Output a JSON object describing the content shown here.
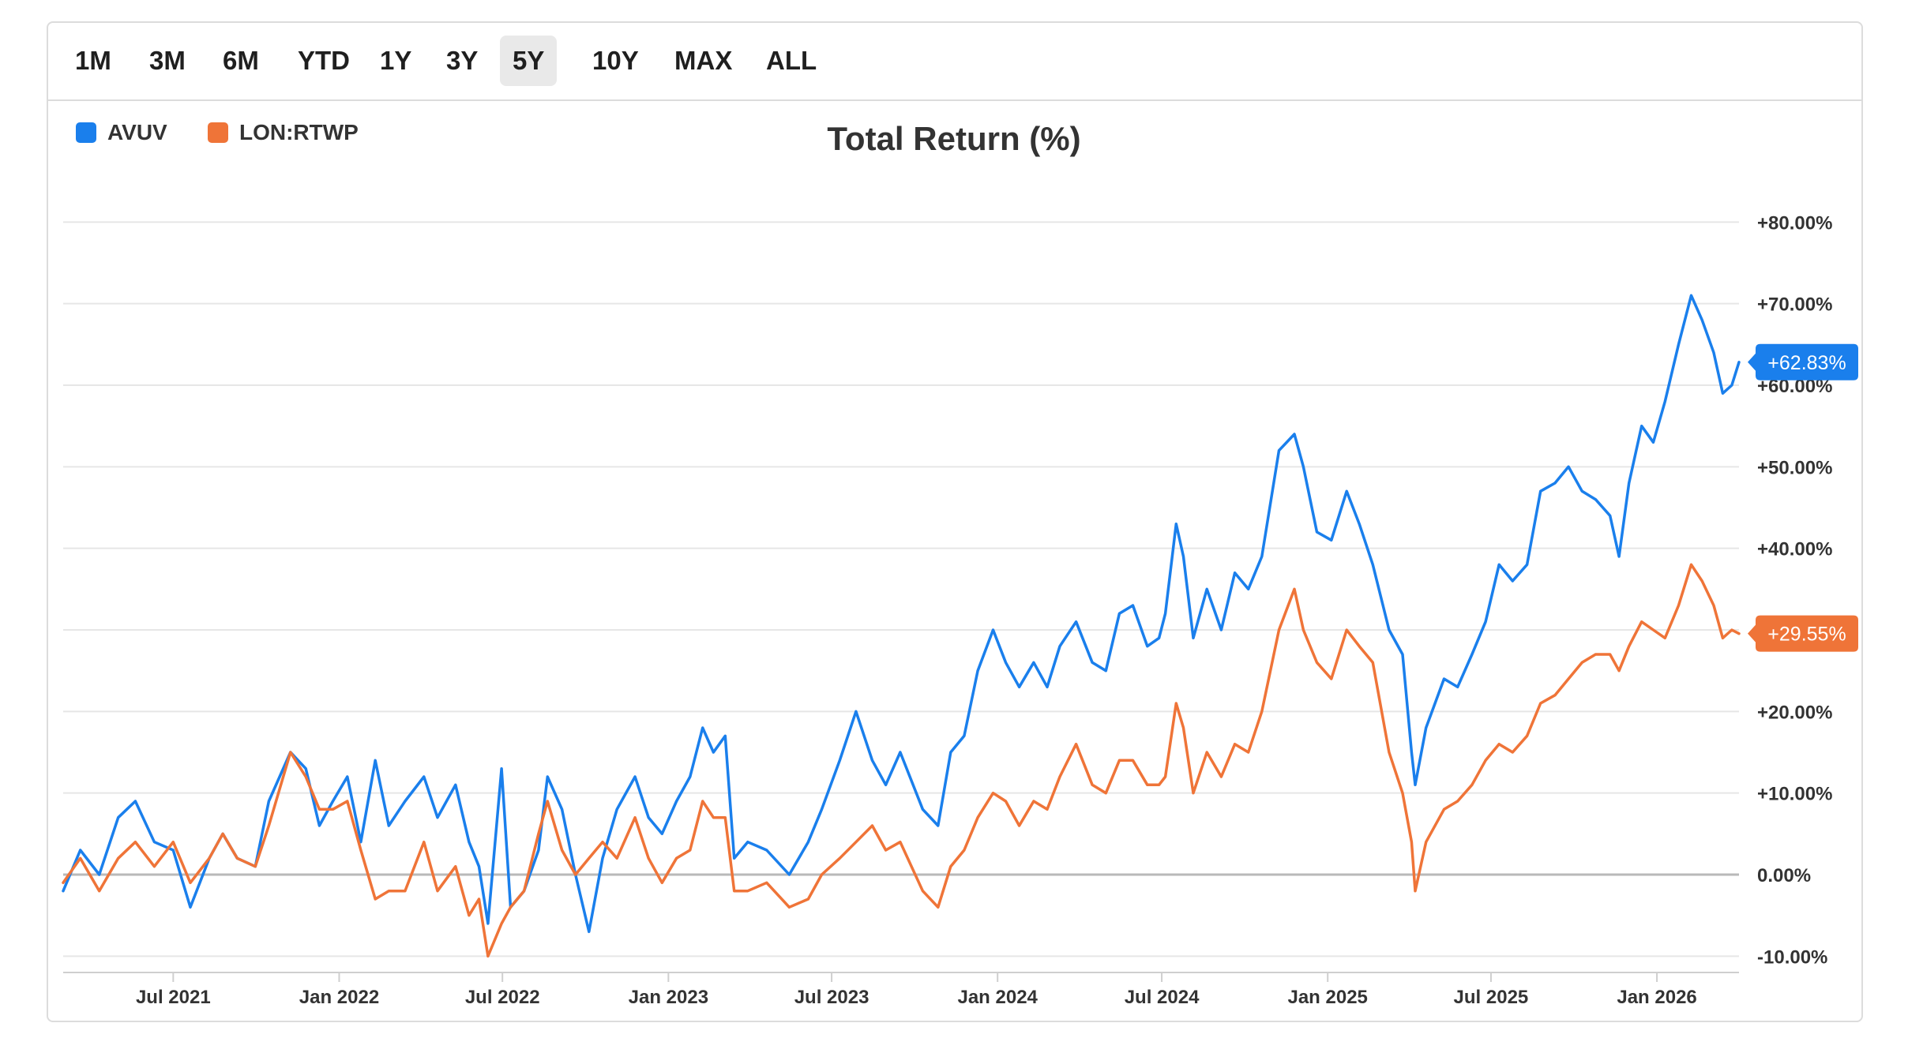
{
  "ranges": {
    "items": [
      "1M",
      "3M",
      "6M",
      "YTD",
      "1Y",
      "3Y",
      "5Y",
      "10Y",
      "MAX",
      "ALL"
    ],
    "active": "5Y"
  },
  "legend": [
    {
      "name": "AVUV",
      "color": "#1a7fec"
    },
    {
      "name": "LON:RTWP",
      "color": "#ef7438"
    }
  ],
  "chart_data": {
    "type": "line",
    "title": "Total Return (%)",
    "xlabel": "",
    "ylabel": "",
    "x_range": [
      "2021-03-01",
      "2026-04-02"
    ],
    "ylim": [
      -12,
      84
    ],
    "y_ticks": [
      80,
      70,
      60,
      50,
      40,
      30,
      20,
      10,
      0,
      -10
    ],
    "y_tick_labels": [
      "+80.00%",
      "+70.00%",
      "+60.00%",
      "+50.00%",
      "+40.00%",
      "",
      "+20.00%",
      "+10.00%",
      "0.00%",
      "-10.00%"
    ],
    "x_ticks": [
      "2021-07-01",
      "2022-01-01",
      "2022-07-01",
      "2023-01-01",
      "2023-07-01",
      "2024-01-01",
      "2024-07-01",
      "2025-01-01",
      "2025-07-01",
      "2026-01-01"
    ],
    "x_tick_labels": [
      "Jul 2021",
      "Jan 2022",
      "Jul 2022",
      "Jan 2023",
      "Jul 2023",
      "Jan 2024",
      "Jul 2024",
      "Jan 2025",
      "Jul 2025",
      "Jan 2026"
    ],
    "grid": true,
    "legend_position": "top-left",
    "series": [
      {
        "name": "AVUV",
        "color": "#1a7fec",
        "last_value_label": "+62.83%",
        "points": [
          [
            "2021-03-01",
            -2
          ],
          [
            "2021-03-20",
            3
          ],
          [
            "2021-04-10",
            0
          ],
          [
            "2021-05-01",
            7
          ],
          [
            "2021-05-20",
            9
          ],
          [
            "2021-06-10",
            4
          ],
          [
            "2021-07-01",
            3
          ],
          [
            "2021-07-20",
            -4
          ],
          [
            "2021-08-10",
            2
          ],
          [
            "2021-08-25",
            5
          ],
          [
            "2021-09-10",
            2
          ],
          [
            "2021-09-30",
            1
          ],
          [
            "2021-10-15",
            9
          ],
          [
            "2021-11-08",
            15
          ],
          [
            "2021-11-25",
            13
          ],
          [
            "2021-12-10",
            6
          ],
          [
            "2021-12-25",
            9
          ],
          [
            "2022-01-10",
            12
          ],
          [
            "2022-01-25",
            4
          ],
          [
            "2022-02-10",
            14
          ],
          [
            "2022-02-25",
            6
          ],
          [
            "2022-03-15",
            9
          ],
          [
            "2022-04-05",
            12
          ],
          [
            "2022-04-20",
            7
          ],
          [
            "2022-05-10",
            11
          ],
          [
            "2022-05-25",
            4
          ],
          [
            "2022-06-05",
            1
          ],
          [
            "2022-06-15",
            -6
          ],
          [
            "2022-06-30",
            13
          ],
          [
            "2022-07-10",
            -4
          ],
          [
            "2022-07-25",
            -2
          ],
          [
            "2022-08-10",
            3
          ],
          [
            "2022-08-20",
            12
          ],
          [
            "2022-09-05",
            8
          ],
          [
            "2022-09-20",
            0
          ],
          [
            "2022-10-05",
            -7
          ],
          [
            "2022-10-20",
            2
          ],
          [
            "2022-11-05",
            8
          ],
          [
            "2022-11-25",
            12
          ],
          [
            "2022-12-10",
            7
          ],
          [
            "2022-12-25",
            5
          ],
          [
            "2023-01-10",
            9
          ],
          [
            "2023-01-25",
            12
          ],
          [
            "2023-02-08",
            18
          ],
          [
            "2023-02-20",
            15
          ],
          [
            "2023-03-05",
            17
          ],
          [
            "2023-03-15",
            2
          ],
          [
            "2023-03-30",
            4
          ],
          [
            "2023-04-20",
            3
          ],
          [
            "2023-05-15",
            0
          ],
          [
            "2023-06-05",
            4
          ],
          [
            "2023-06-20",
            8
          ],
          [
            "2023-07-10",
            14
          ],
          [
            "2023-07-28",
            20
          ],
          [
            "2023-08-15",
            14
          ],
          [
            "2023-08-30",
            11
          ],
          [
            "2023-09-15",
            15
          ],
          [
            "2023-10-10",
            8
          ],
          [
            "2023-10-27",
            6
          ],
          [
            "2023-11-10",
            15
          ],
          [
            "2023-11-25",
            17
          ],
          [
            "2023-12-10",
            25
          ],
          [
            "2023-12-27",
            30
          ],
          [
            "2024-01-10",
            26
          ],
          [
            "2024-01-25",
            23
          ],
          [
            "2024-02-10",
            26
          ],
          [
            "2024-02-25",
            23
          ],
          [
            "2024-03-10",
            28
          ],
          [
            "2024-03-28",
            31
          ],
          [
            "2024-04-15",
            26
          ],
          [
            "2024-04-30",
            25
          ],
          [
            "2024-05-15",
            32
          ],
          [
            "2024-05-30",
            33
          ],
          [
            "2024-06-15",
            28
          ],
          [
            "2024-06-28",
            29
          ],
          [
            "2024-07-05",
            32
          ],
          [
            "2024-07-17",
            43
          ],
          [
            "2024-07-25",
            39
          ],
          [
            "2024-08-05",
            29
          ],
          [
            "2024-08-20",
            35
          ],
          [
            "2024-09-05",
            30
          ],
          [
            "2024-09-20",
            37
          ],
          [
            "2024-10-05",
            35
          ],
          [
            "2024-10-20",
            39
          ],
          [
            "2024-11-08",
            52
          ],
          [
            "2024-11-25",
            54
          ],
          [
            "2024-12-05",
            50
          ],
          [
            "2024-12-20",
            42
          ],
          [
            "2025-01-05",
            41
          ],
          [
            "2025-01-22",
            47
          ],
          [
            "2025-02-05",
            43
          ],
          [
            "2025-02-20",
            38
          ],
          [
            "2025-03-10",
            30
          ],
          [
            "2025-03-25",
            27
          ],
          [
            "2025-04-04",
            15
          ],
          [
            "2025-04-08",
            11
          ],
          [
            "2025-04-20",
            18
          ],
          [
            "2025-05-10",
            24
          ],
          [
            "2025-05-25",
            23
          ],
          [
            "2025-06-10",
            27
          ],
          [
            "2025-06-25",
            31
          ],
          [
            "2025-07-10",
            38
          ],
          [
            "2025-07-25",
            36
          ],
          [
            "2025-08-10",
            38
          ],
          [
            "2025-08-25",
            47
          ],
          [
            "2025-09-10",
            48
          ],
          [
            "2025-09-25",
            50
          ],
          [
            "2025-10-10",
            47
          ],
          [
            "2025-10-25",
            46
          ],
          [
            "2025-11-10",
            44
          ],
          [
            "2025-11-20",
            39
          ],
          [
            "2025-12-01",
            48
          ],
          [
            "2025-12-15",
            55
          ],
          [
            "2025-12-28",
            53
          ],
          [
            "2026-01-10",
            58
          ],
          [
            "2026-01-25",
            65
          ],
          [
            "2026-02-08",
            71
          ],
          [
            "2026-02-20",
            68
          ],
          [
            "2026-03-05",
            64
          ],
          [
            "2026-03-15",
            59
          ],
          [
            "2026-03-25",
            60
          ],
          [
            "2026-04-02",
            62.83
          ]
        ]
      },
      {
        "name": "LON:RTWP",
        "color": "#ef7438",
        "last_value_label": "+29.55%",
        "points": [
          [
            "2021-03-01",
            -1
          ],
          [
            "2021-03-20",
            2
          ],
          [
            "2021-04-10",
            -2
          ],
          [
            "2021-05-01",
            2
          ],
          [
            "2021-05-20",
            4
          ],
          [
            "2021-06-10",
            1
          ],
          [
            "2021-07-01",
            4
          ],
          [
            "2021-07-20",
            -1
          ],
          [
            "2021-08-10",
            2
          ],
          [
            "2021-08-25",
            5
          ],
          [
            "2021-09-10",
            2
          ],
          [
            "2021-09-30",
            1
          ],
          [
            "2021-10-15",
            6
          ],
          [
            "2021-11-08",
            15
          ],
          [
            "2021-11-25",
            12
          ],
          [
            "2021-12-10",
            8
          ],
          [
            "2021-12-25",
            8
          ],
          [
            "2022-01-10",
            9
          ],
          [
            "2022-01-25",
            3
          ],
          [
            "2022-02-10",
            -3
          ],
          [
            "2022-02-25",
            -2
          ],
          [
            "2022-03-15",
            -2
          ],
          [
            "2022-04-05",
            4
          ],
          [
            "2022-04-20",
            -2
          ],
          [
            "2022-05-10",
            1
          ],
          [
            "2022-05-25",
            -5
          ],
          [
            "2022-06-05",
            -3
          ],
          [
            "2022-06-15",
            -10
          ],
          [
            "2022-06-30",
            -6
          ],
          [
            "2022-07-10",
            -4
          ],
          [
            "2022-07-25",
            -2
          ],
          [
            "2022-08-10",
            5
          ],
          [
            "2022-08-20",
            9
          ],
          [
            "2022-09-05",
            3
          ],
          [
            "2022-09-20",
            0
          ],
          [
            "2022-10-05",
            2
          ],
          [
            "2022-10-20",
            4
          ],
          [
            "2022-11-05",
            2
          ],
          [
            "2022-11-25",
            7
          ],
          [
            "2022-12-10",
            2
          ],
          [
            "2022-12-25",
            -1
          ],
          [
            "2023-01-10",
            2
          ],
          [
            "2023-01-25",
            3
          ],
          [
            "2023-02-08",
            9
          ],
          [
            "2023-02-20",
            7
          ],
          [
            "2023-03-05",
            7
          ],
          [
            "2023-03-15",
            -2
          ],
          [
            "2023-03-30",
            -2
          ],
          [
            "2023-04-20",
            -1
          ],
          [
            "2023-05-15",
            -4
          ],
          [
            "2023-06-05",
            -3
          ],
          [
            "2023-06-20",
            0
          ],
          [
            "2023-07-10",
            2
          ],
          [
            "2023-07-28",
            4
          ],
          [
            "2023-08-15",
            6
          ],
          [
            "2023-08-30",
            3
          ],
          [
            "2023-09-15",
            4
          ],
          [
            "2023-10-10",
            -2
          ],
          [
            "2023-10-27",
            -4
          ],
          [
            "2023-11-10",
            1
          ],
          [
            "2023-11-25",
            3
          ],
          [
            "2023-12-10",
            7
          ],
          [
            "2023-12-27",
            10
          ],
          [
            "2024-01-10",
            9
          ],
          [
            "2024-01-25",
            6
          ],
          [
            "2024-02-10",
            9
          ],
          [
            "2024-02-25",
            8
          ],
          [
            "2024-03-10",
            12
          ],
          [
            "2024-03-28",
            16
          ],
          [
            "2024-04-15",
            11
          ],
          [
            "2024-04-30",
            10
          ],
          [
            "2024-05-15",
            14
          ],
          [
            "2024-05-30",
            14
          ],
          [
            "2024-06-15",
            11
          ],
          [
            "2024-06-28",
            11
          ],
          [
            "2024-07-05",
            12
          ],
          [
            "2024-07-17",
            21
          ],
          [
            "2024-07-25",
            18
          ],
          [
            "2024-08-05",
            10
          ],
          [
            "2024-08-20",
            15
          ],
          [
            "2024-09-05",
            12
          ],
          [
            "2024-09-20",
            16
          ],
          [
            "2024-10-05",
            15
          ],
          [
            "2024-10-20",
            20
          ],
          [
            "2024-11-08",
            30
          ],
          [
            "2024-11-25",
            35
          ],
          [
            "2024-12-05",
            30
          ],
          [
            "2024-12-20",
            26
          ],
          [
            "2025-01-05",
            24
          ],
          [
            "2025-01-22",
            30
          ],
          [
            "2025-02-05",
            28
          ],
          [
            "2025-02-20",
            26
          ],
          [
            "2025-03-10",
            15
          ],
          [
            "2025-03-25",
            10
          ],
          [
            "2025-04-04",
            4
          ],
          [
            "2025-04-08",
            -2
          ],
          [
            "2025-04-20",
            4
          ],
          [
            "2025-05-10",
            8
          ],
          [
            "2025-05-25",
            9
          ],
          [
            "2025-06-10",
            11
          ],
          [
            "2025-06-25",
            14
          ],
          [
            "2025-07-10",
            16
          ],
          [
            "2025-07-25",
            15
          ],
          [
            "2025-08-10",
            17
          ],
          [
            "2025-08-25",
            21
          ],
          [
            "2025-09-10",
            22
          ],
          [
            "2025-09-25",
            24
          ],
          [
            "2025-10-10",
            26
          ],
          [
            "2025-10-25",
            27
          ],
          [
            "2025-11-10",
            27
          ],
          [
            "2025-11-20",
            25
          ],
          [
            "2025-12-01",
            28
          ],
          [
            "2025-12-15",
            31
          ],
          [
            "2025-12-28",
            30
          ],
          [
            "2026-01-10",
            29
          ],
          [
            "2026-01-25",
            33
          ],
          [
            "2026-02-08",
            38
          ],
          [
            "2026-02-20",
            36
          ],
          [
            "2026-03-05",
            33
          ],
          [
            "2026-03-15",
            29
          ],
          [
            "2026-03-25",
            30
          ],
          [
            "2026-04-02",
            29.55
          ]
        ]
      }
    ]
  }
}
